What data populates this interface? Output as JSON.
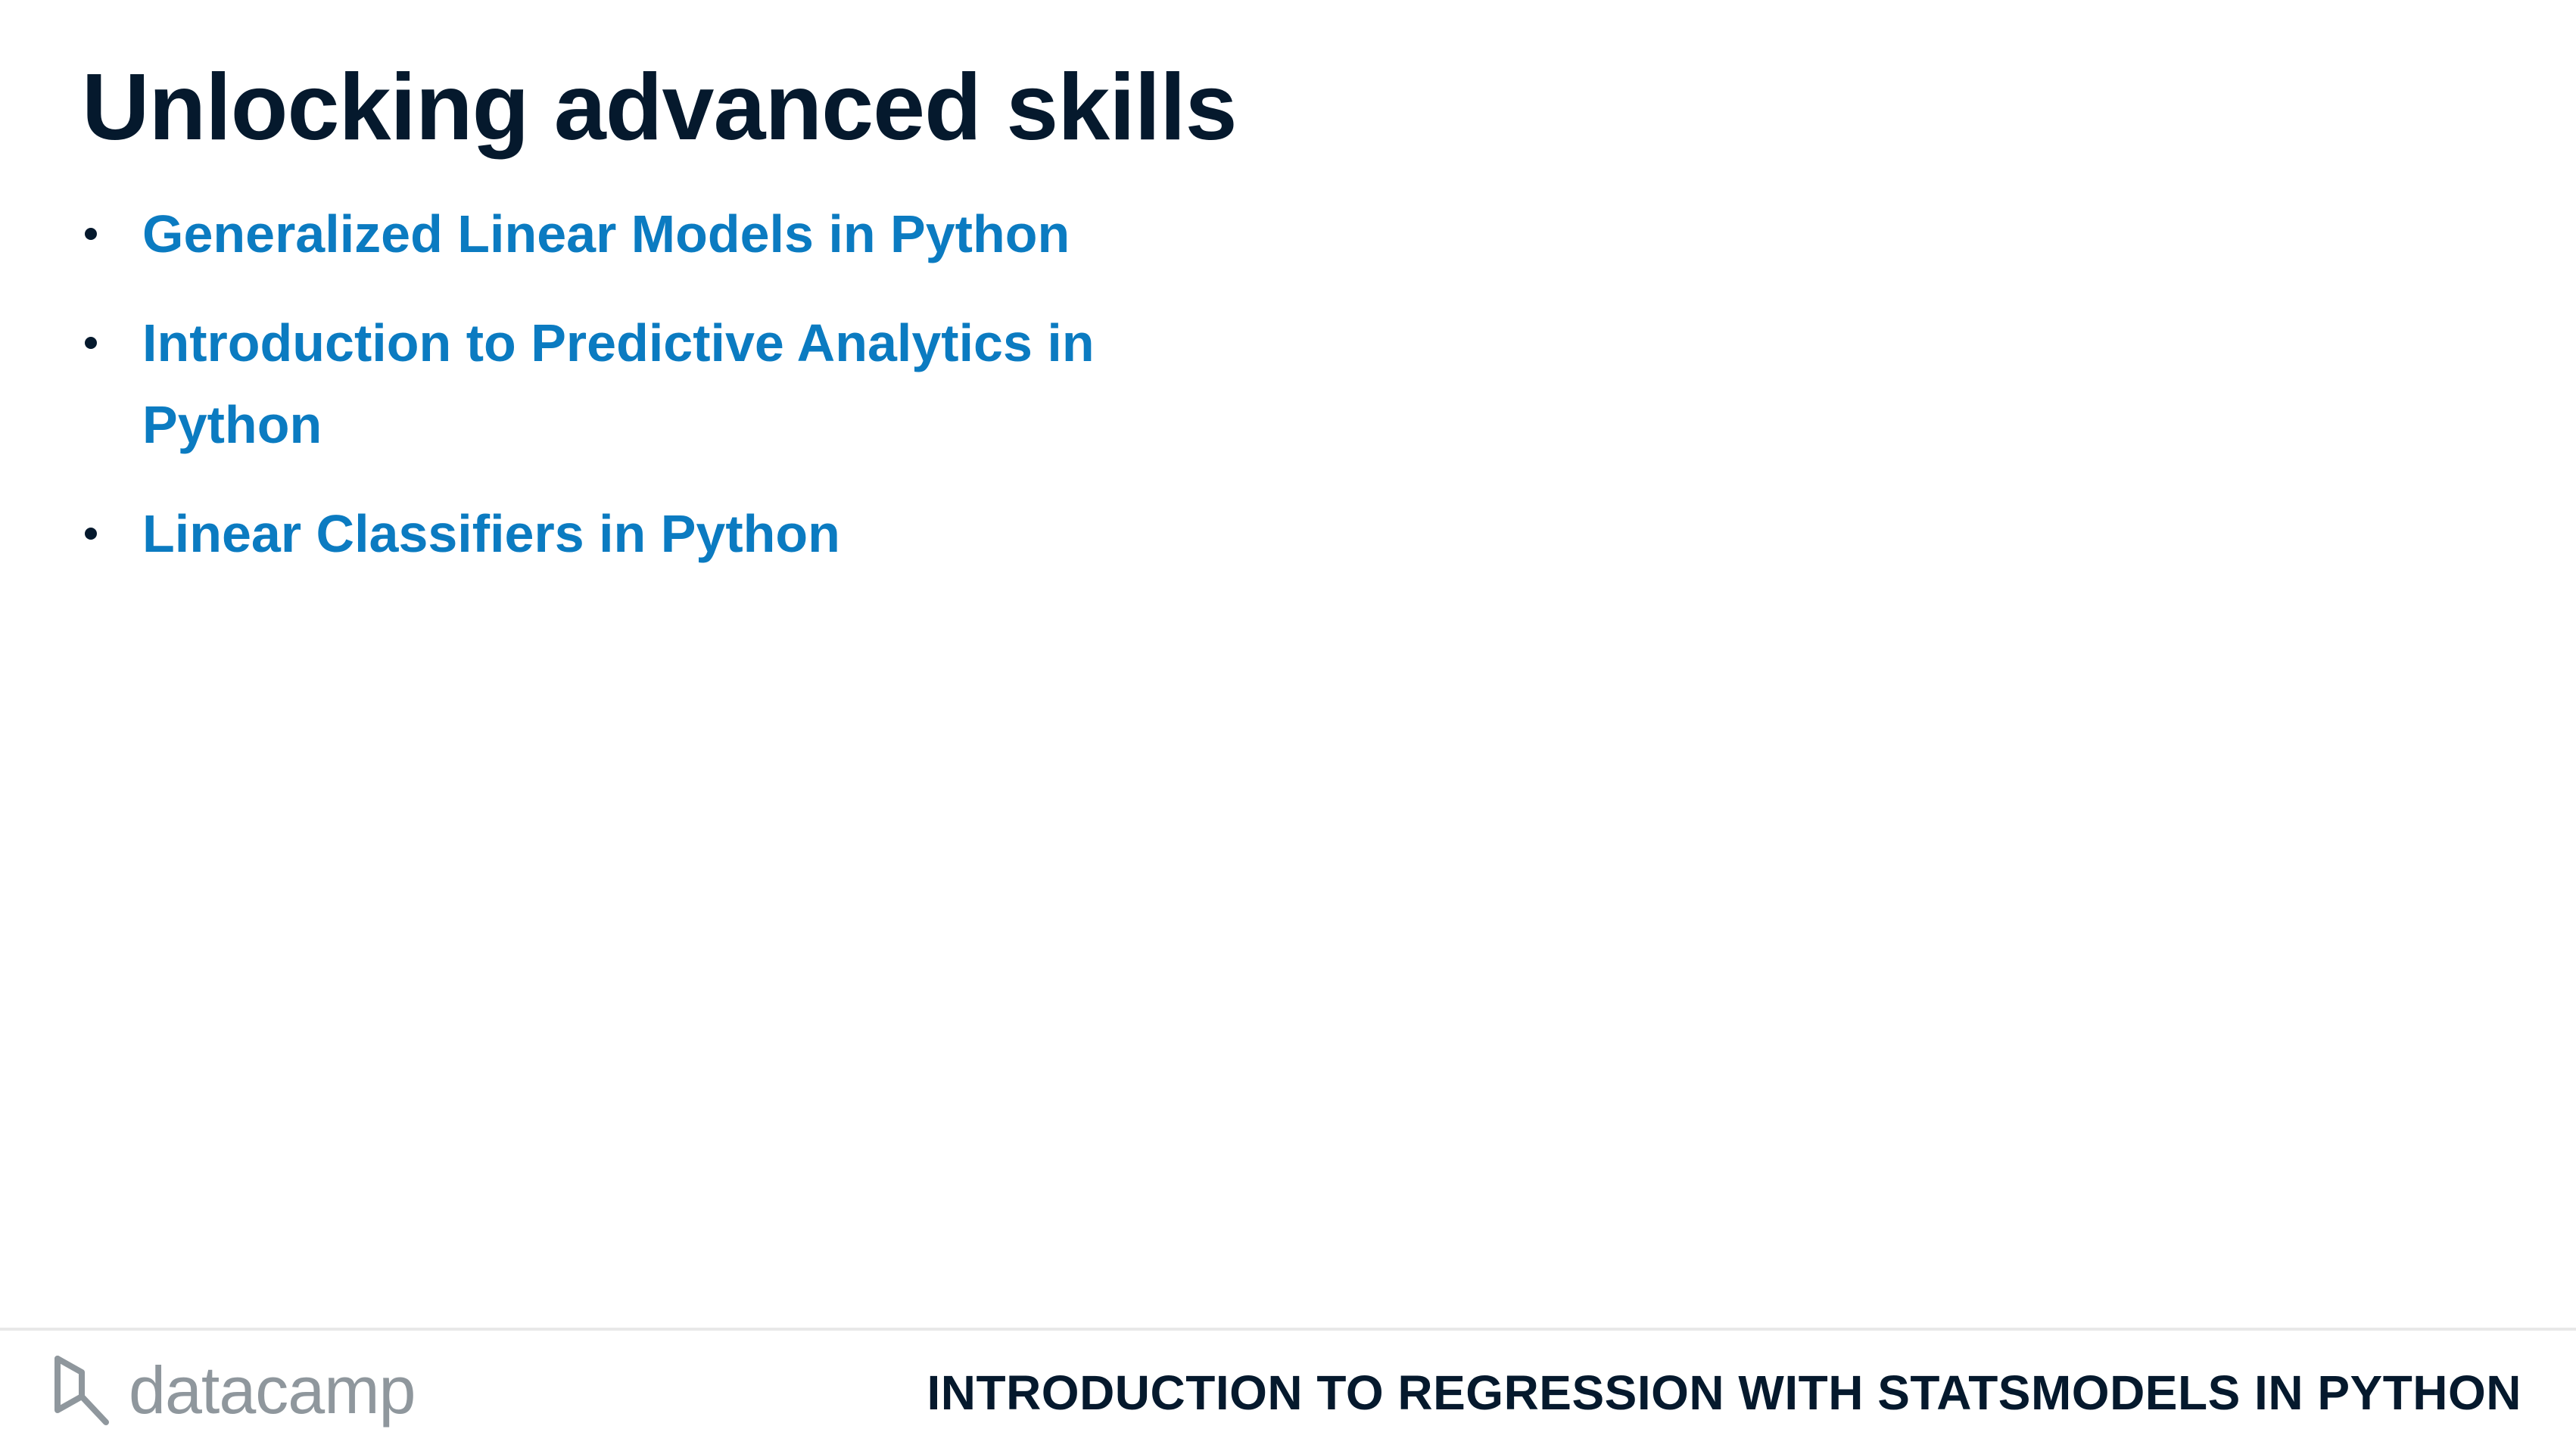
{
  "slide": {
    "title": "Unlocking advanced skills"
  },
  "links": [
    {
      "text": "Generalized Linear Models in Python"
    },
    {
      "text": "Introduction to Predictive Analytics in Python"
    },
    {
      "text": "Linear Classifiers in Python"
    }
  ],
  "footer": {
    "logo_text": "datacamp",
    "logo_icon": "datacamp-logo-icon",
    "course_name": "INTRODUCTION TO REGRESSION WITH STATSMODELS IN PYTHON"
  },
  "colors": {
    "title": "#05192d",
    "link": "#0b7bc1",
    "logo": "#8f979d",
    "rule": "#e8e8e8",
    "background": "#ffffff"
  }
}
